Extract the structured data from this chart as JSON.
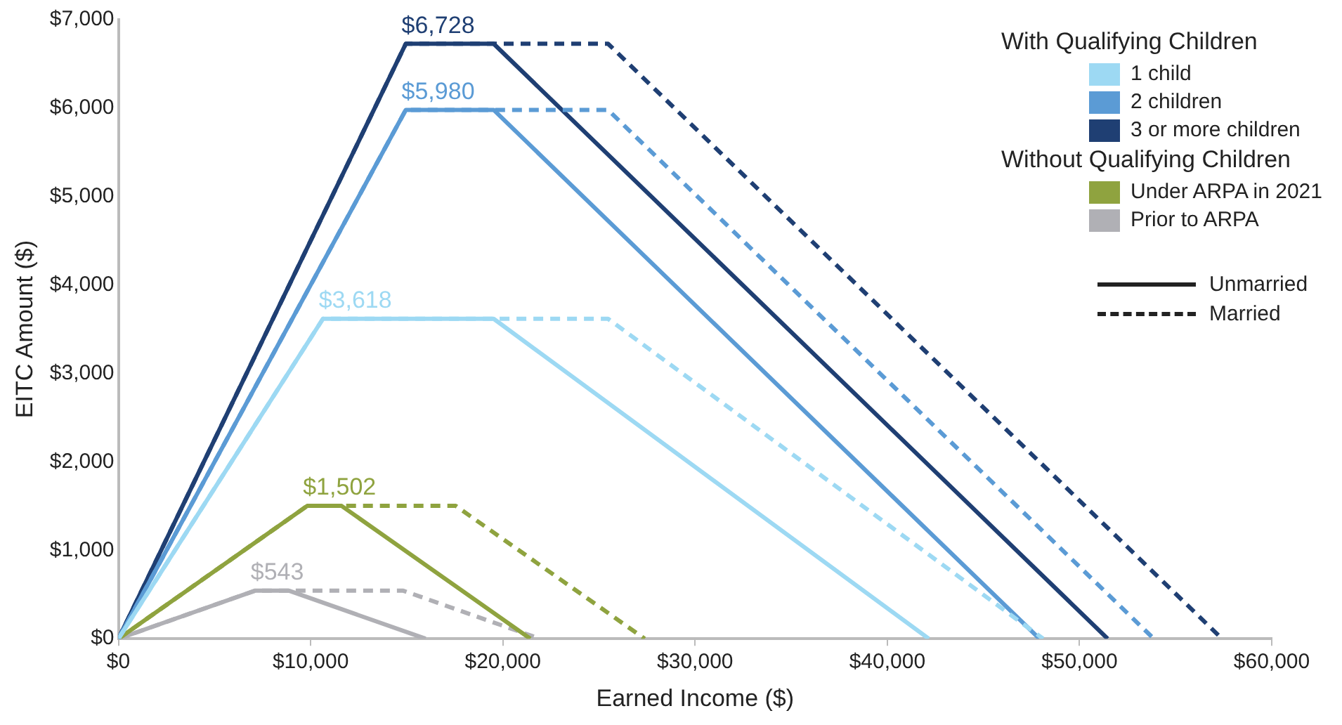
{
  "chart_data": {
    "type": "line",
    "xlabel": "Earned Income ($)",
    "ylabel": "EITC Amount ($)",
    "xlim": [
      0,
      60000
    ],
    "xticks": [
      {
        "value": 0,
        "label": "$0"
      },
      {
        "value": 10000,
        "label": "$10,000"
      },
      {
        "value": 20000,
        "label": "$20,000"
      },
      {
        "value": 30000,
        "label": "$30,000"
      },
      {
        "value": 40000,
        "label": "$40,000"
      },
      {
        "value": 50000,
        "label": "$50,000"
      },
      {
        "value": 60000,
        "label": "$60,000"
      }
    ],
    "ylim": [
      0,
      7000
    ],
    "yticks": [
      {
        "value": 0,
        "label": "$0"
      },
      {
        "value": 1000,
        "label": "$1,000"
      },
      {
        "value": 2000,
        "label": "$2,000"
      },
      {
        "value": 3000,
        "label": "$3,000"
      },
      {
        "value": 4000,
        "label": "$4,000"
      },
      {
        "value": 5000,
        "label": "$5,000"
      },
      {
        "value": 6000,
        "label": "$6,000"
      },
      {
        "value": 7000,
        "label": "$7,000"
      }
    ],
    "grid": false,
    "legend": "top right",
    "marker": "none",
    "annotations": [
      "With Qualifying Children",
      "Without Qualifying Children",
      "Unmarried",
      "Married"
    ],
    "series": [
      {
        "name": "1 child",
        "color": "#9dd9f3",
        "line_style": "solid",
        "x": [
          0,
          10640,
          19520,
          42158
        ],
        "values": [
          0,
          3618,
          3618,
          0
        ],
        "value_labels": [
          null,
          "$3,618",
          null,
          null
        ]
      },
      {
        "color": "#9dd9f3",
        "line_style": "dashed",
        "x": [
          0,
          10640,
          25470,
          48108
        ],
        "values": [
          0,
          3618,
          3618,
          0
        ]
      },
      {
        "name": "2 children",
        "color": "#5b9bd5",
        "line_style": "solid",
        "x": [
          0,
          14950,
          19520,
          47915
        ],
        "values": [
          0,
          5980,
          5980,
          0
        ],
        "value_labels": [
          null,
          "$5,980",
          null,
          null
        ]
      },
      {
        "color": "#5b9bd5",
        "line_style": "dashed",
        "x": [
          0,
          14950,
          25470,
          53865
        ],
        "values": [
          0,
          5980,
          5980,
          0
        ]
      },
      {
        "name": "3 or more children",
        "color": "#1f3f73",
        "line_style": "solid",
        "x": [
          0,
          14950,
          19520,
          51464
        ],
        "values": [
          0,
          6728,
          6728,
          0
        ],
        "value_labels": [
          null,
          "$6,728",
          null,
          null
        ]
      },
      {
        "color": "#1f3f73",
        "line_style": "dashed",
        "x": [
          0,
          14950,
          25470,
          57414
        ],
        "values": [
          0,
          6728,
          6728,
          0
        ]
      },
      {
        "name": "Under ARPA in 2021",
        "color": "#8fa33f",
        "line_style": "solid",
        "x": [
          0,
          9820,
          11610,
          21430
        ],
        "values": [
          0,
          1502,
          1502,
          0
        ],
        "value_labels": [
          null,
          "$1,502",
          null,
          null
        ]
      },
      {
        "color": "#8fa33f",
        "line_style": "dashed",
        "x": [
          0,
          9820,
          17550,
          27380
        ],
        "values": [
          0,
          1502,
          1502,
          0
        ]
      },
      {
        "name": "Prior to ARPA",
        "color": "#b0b0b5",
        "line_style": "solid",
        "x": [
          0,
          7100,
          8880,
          15980
        ],
        "values": [
          0,
          543,
          543,
          0
        ],
        "value_labels": [
          null,
          "$543",
          null,
          null
        ]
      },
      {
        "color": "#b0b0b5",
        "line_style": "dashed",
        "x": [
          0,
          7100,
          14820,
          21920
        ],
        "values": [
          0,
          543,
          543,
          0
        ]
      }
    ]
  }
}
